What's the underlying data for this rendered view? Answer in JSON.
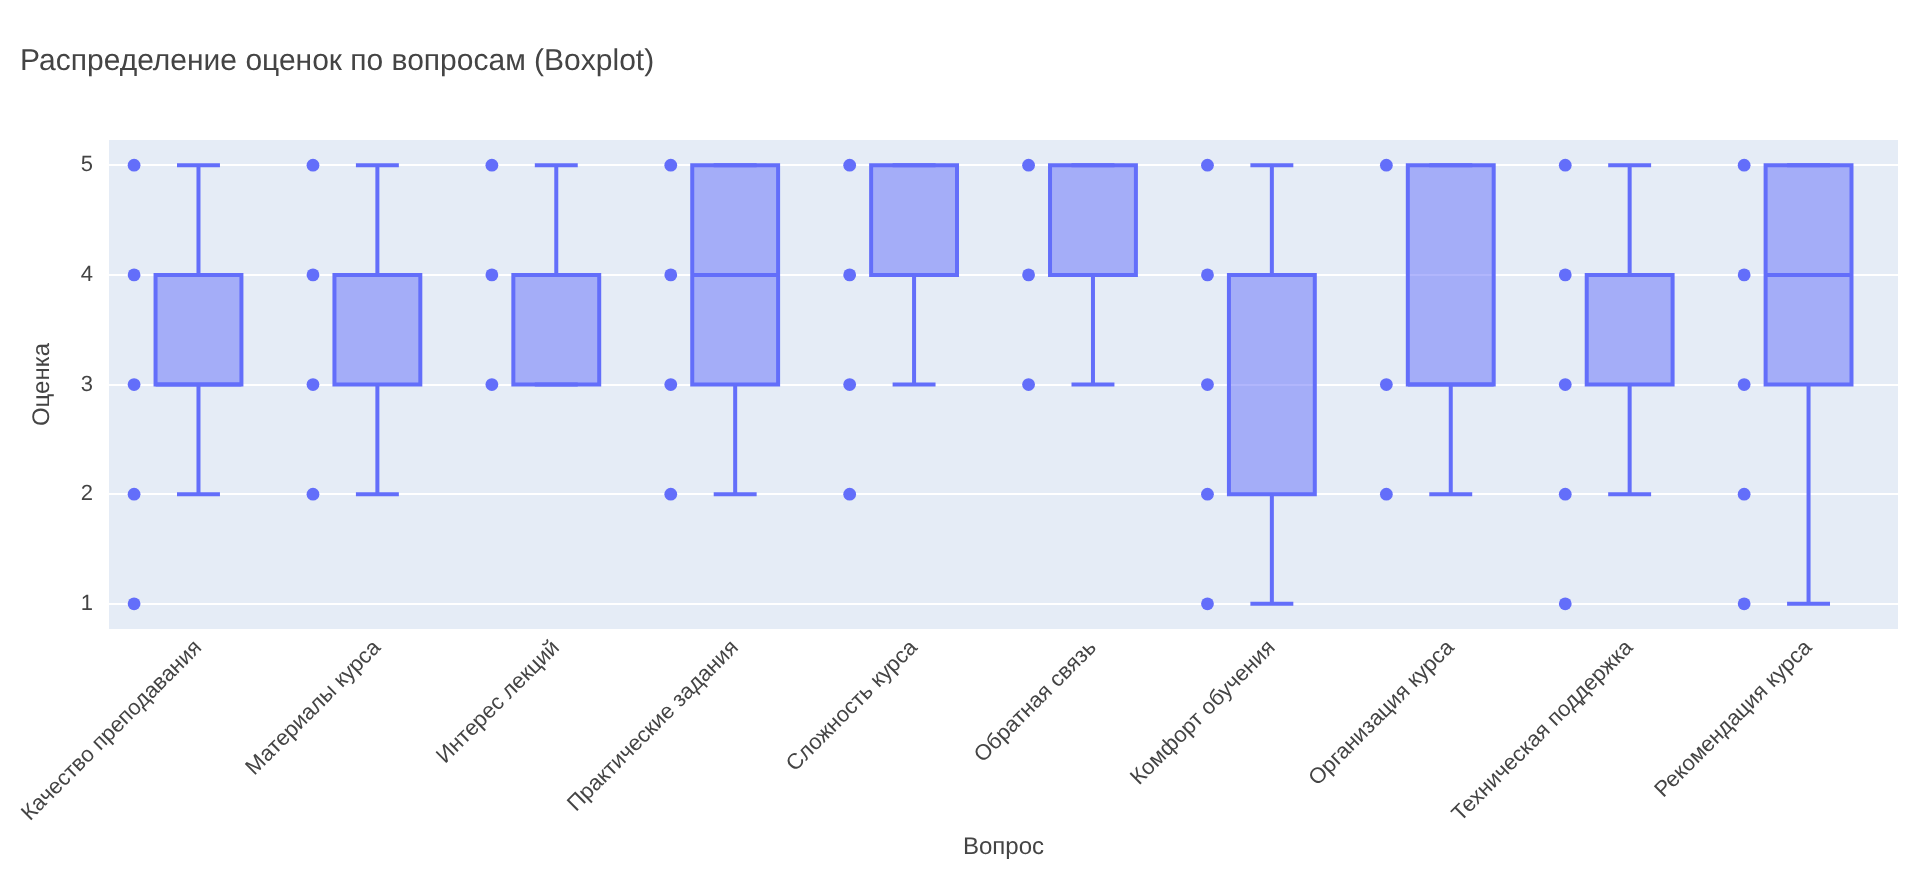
{
  "chart_data": {
    "type": "box",
    "title": "Распределение оценок по вопросам (Boxplot)",
    "xlabel": "Вопрос",
    "ylabel": "Оценка",
    "categories": [
      "Качество преподавания",
      "Материалы курса",
      "Интерес лекций",
      "Практические задания",
      "Сложность курса",
      "Обратная связь",
      "Комфорт обучения",
      "Организация курса",
      "Техническая поддержка",
      "Рекомендация курса"
    ],
    "ylim": [
      0.77,
      5.23
    ],
    "yticks": [
      1,
      2,
      3,
      4,
      5
    ],
    "grid": "y",
    "legend": false,
    "series": [
      {
        "color": "#636efa",
        "boxes": [
          {
            "low": 2,
            "q1": 3,
            "median": 3,
            "q3": 4,
            "high": 5
          },
          {
            "low": 2,
            "q1": 3,
            "median": 4,
            "q3": 4,
            "high": 5
          },
          {
            "low": 3,
            "q1": 3,
            "median": 4,
            "q3": 4,
            "high": 5
          },
          {
            "low": 2,
            "q1": 3,
            "median": 4,
            "q3": 5,
            "high": 5
          },
          {
            "low": 3,
            "q1": 4,
            "median": 4,
            "q3": 5,
            "high": 5
          },
          {
            "low": 3,
            "q1": 4,
            "median": 4,
            "q3": 5,
            "high": 5
          },
          {
            "low": 1,
            "q1": 2,
            "median": 4,
            "q3": 4,
            "high": 5
          },
          {
            "low": 2,
            "q1": 3,
            "median": 3,
            "q3": 5,
            "high": 5
          },
          {
            "low": 2,
            "q1": 3,
            "median": 4,
            "q3": 4,
            "high": 5
          },
          {
            "low": 1,
            "q1": 3,
            "median": 4,
            "q3": 5,
            "high": 5
          }
        ]
      },
      {
        "type": "scatter",
        "color": "#636efa",
        "marker": "circle",
        "x": [
          "Качество преподавания",
          "Качество преподавания",
          "Качество преподавания",
          "Качество преподавания",
          "Качество преподавания",
          "Материалы курса",
          "Материалы курса",
          "Материалы курса",
          "Материалы курса",
          "Интерес лекций",
          "Интерес лекций",
          "Интерес лекций",
          "Практические задания",
          "Практические задания",
          "Практические задания",
          "Практические задания",
          "Сложность курса",
          "Сложность курса",
          "Сложность курса",
          "Сложность курса",
          "Обратная связь",
          "Обратная связь",
          "Обратная связь",
          "Комфорт обучения",
          "Комфорт обучения",
          "Комфорт обучения",
          "Комфорт обучения",
          "Комфорт обучения",
          "Организация курса",
          "Организация курса",
          "Организация курса",
          "Техническая поддержка",
          "Техническая поддержка",
          "Техническая поддержка",
          "Техническая поддержка",
          "Техническая поддержка",
          "Рекомендация курса",
          "Рекомендация курса",
          "Рекомендация курса",
          "Рекомендация курса",
          "Рекомендация курса"
        ],
        "values": [
          5,
          4,
          3,
          2,
          1,
          5,
          4,
          3,
          2,
          5,
          4,
          3,
          5,
          4,
          3,
          2,
          5,
          4,
          3,
          2,
          5,
          4,
          3,
          5,
          4,
          3,
          2,
          1,
          5,
          3,
          2,
          5,
          4,
          3,
          2,
          1,
          5,
          4,
          3,
          2,
          1
        ]
      }
    ]
  }
}
